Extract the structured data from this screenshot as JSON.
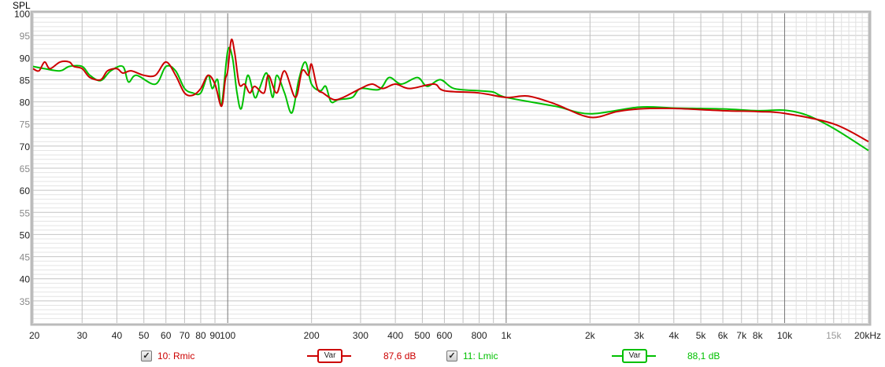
{
  "chart_data": {
    "type": "line",
    "ylabel": "SPL",
    "x_scale": "log",
    "xlim": [
      20,
      20000
    ],
    "ylim": [
      30,
      100
    ],
    "grid": true,
    "y_ticks": [
      "100",
      "95",
      "90",
      "85",
      "80",
      "75",
      "70",
      "65",
      "60",
      "55",
      "50",
      "45",
      "40",
      "35"
    ],
    "x_ticks": [
      {
        "f": 20,
        "label": "20"
      },
      {
        "f": 30,
        "label": "30"
      },
      {
        "f": 40,
        "label": "40"
      },
      {
        "f": 50,
        "label": "50"
      },
      {
        "f": 60,
        "label": "60"
      },
      {
        "f": 70,
        "label": "70"
      },
      {
        "f": 80,
        "label": "80"
      },
      {
        "f": 90,
        "label": "90"
      },
      {
        "f": 100,
        "label": "100"
      },
      {
        "f": 200,
        "label": "200"
      },
      {
        "f": 300,
        "label": "300"
      },
      {
        "f": 400,
        "label": "400"
      },
      {
        "f": 500,
        "label": "500"
      },
      {
        "f": 600,
        "label": "600"
      },
      {
        "f": 800,
        "label": "800"
      },
      {
        "f": 1000,
        "label": "1k"
      },
      {
        "f": 2000,
        "label": "2k"
      },
      {
        "f": 3000,
        "label": "3k"
      },
      {
        "f": 4000,
        "label": "4k"
      },
      {
        "f": 5000,
        "label": "5k"
      },
      {
        "f": 6000,
        "label": "6k"
      },
      {
        "f": 7000,
        "label": "7k"
      },
      {
        "f": 8000,
        "label": "8k"
      },
      {
        "f": 10000,
        "label": "10k"
      },
      {
        "f": 15000,
        "label": "15k"
      },
      {
        "f": 20000,
        "label": "20kHz"
      }
    ],
    "series": [
      {
        "name": "10: Rmic",
        "color": "#cc0000",
        "smoothing": "Var",
        "level": "87,6 dB",
        "x": [
          20,
          21,
          22,
          23,
          25,
          27,
          28,
          30,
          32,
          35,
          37,
          40,
          42,
          45,
          50,
          55,
          60,
          65,
          70,
          75,
          80,
          85,
          90,
          95,
          98,
          100,
          103,
          106,
          110,
          115,
          120,
          125,
          135,
          140,
          150,
          160,
          175,
          185,
          195,
          200,
          210,
          220,
          240,
          260,
          300,
          330,
          360,
          400,
          450,
          550,
          600,
          800,
          1000,
          1200,
          1500,
          2000,
          2500,
          3000,
          4000,
          6000,
          8000,
          10000,
          15000,
          20000
        ],
        "y": [
          87.5,
          87,
          89,
          87.5,
          89,
          89,
          88,
          87.5,
          85.5,
          85,
          87,
          87.5,
          86.5,
          87,
          86,
          86,
          89,
          86,
          82,
          81.5,
          83,
          86,
          84,
          79,
          85,
          87,
          94,
          91,
          84,
          84,
          82,
          83.5,
          82,
          86,
          82,
          87,
          81,
          87,
          86,
          88.5,
          83,
          82,
          80.5,
          81,
          83,
          84,
          83,
          84,
          83,
          84,
          82.5,
          82,
          81,
          81.3,
          79.5,
          76.5,
          77.8,
          78.4,
          78.5,
          78,
          77.8,
          77.4,
          75,
          71
        ]
      },
      {
        "name": "11: Lmic",
        "color": "#00c000",
        "smoothing": "Var",
        "level": "88,1 dB",
        "x": [
          20,
          22,
          25,
          27,
          30,
          32,
          35,
          38,
          42,
          44,
          47,
          55,
          60,
          65,
          70,
          75,
          80,
          85,
          88,
          92,
          95,
          100,
          104,
          108,
          112,
          118,
          125,
          130,
          138,
          145,
          150,
          160,
          170,
          180,
          190,
          200,
          215,
          225,
          235,
          250,
          280,
          300,
          350,
          380,
          420,
          480,
          520,
          580,
          650,
          800,
          900,
          1000,
          1500,
          2000,
          3000,
          4000,
          6000,
          8000,
          10000,
          12000,
          15000,
          20000
        ],
        "y": [
          88,
          87.5,
          87,
          88,
          88,
          86,
          84.8,
          87,
          88,
          84.5,
          86,
          84,
          88,
          87,
          83,
          82,
          82,
          86,
          83,
          85,
          79.2,
          91.5,
          90,
          82,
          78.5,
          86,
          81,
          83,
          86.5,
          81,
          86,
          82,
          77.5,
          85,
          89,
          84,
          82.5,
          83.5,
          80,
          80.5,
          81,
          83,
          82.8,
          85.5,
          84,
          85.5,
          83.5,
          85,
          83,
          82.5,
          82.2,
          81,
          79,
          77.3,
          78.8,
          78.6,
          78.4,
          78,
          78.1,
          77,
          74,
          69
        ]
      }
    ]
  },
  "legend": [
    {
      "checked": "✓",
      "label": "10: Rmic",
      "smoothing": "Var",
      "level": "87,6 dB",
      "color": "#cc0000"
    },
    {
      "checked": "✓",
      "label": "11: Lmic",
      "smoothing": "Var",
      "level": "88,1 dB",
      "color": "#00c000"
    }
  ]
}
